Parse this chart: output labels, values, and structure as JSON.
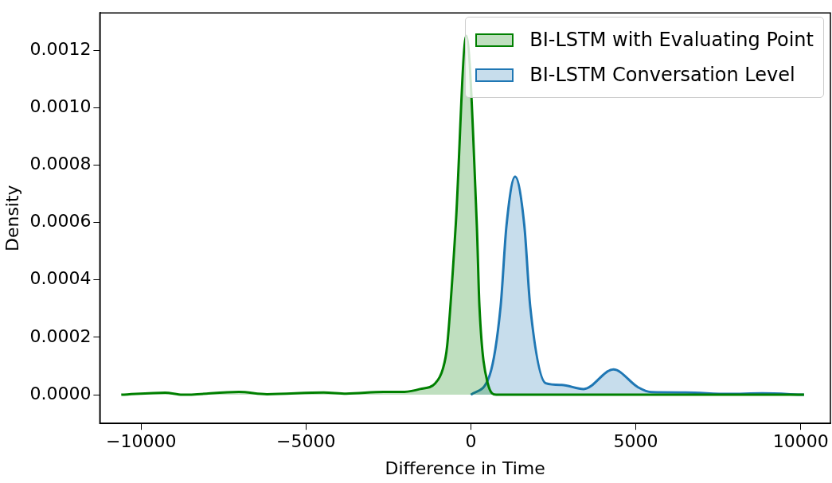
{
  "chart_data": {
    "type": "area",
    "xlabel": "Difference in Time",
    "ylabel": "Density",
    "xlim": [
      -11250,
      10900
    ],
    "xticks": [
      {
        "value": -10000,
        "label": "−10000"
      },
      {
        "value": -5000,
        "label": "−5000"
      },
      0,
      5000,
      10000
    ],
    "ylim": [
      -0.0001,
      0.00133
    ],
    "yticks": [
      {
        "value": 0,
        "label": "0.0000"
      },
      {
        "value": 0.0002,
        "label": "0.0002"
      },
      {
        "value": 0.0004,
        "label": "0.0004"
      },
      {
        "value": 0.0006,
        "label": "0.0006"
      },
      {
        "value": 0.0008,
        "label": "0.0008"
      },
      {
        "value": 0.001,
        "label": "0.0010"
      },
      {
        "value": 0.0012,
        "label": "0.0012"
      }
    ],
    "legend": "top right",
    "grid": false,
    "series": [
      {
        "name": "BI-LSTM with Evaluating Point",
        "color": "#008000",
        "x": [
          -10600,
          -9270,
          -8750,
          -7030,
          -6180,
          -4460,
          -3780,
          -2650,
          -2060,
          -1540,
          -1080,
          -850,
          -720,
          -460,
          -140,
          180,
          260,
          510,
          770,
          2000,
          10100
        ],
        "values": [
          0,
          7.5e-06,
          0,
          1e-05,
          2e-06,
          8e-06,
          4e-06,
          1e-05,
          1e-05,
          2e-05,
          4e-05,
          9e-05,
          0.00017,
          0.00059,
          0.00125,
          0.00059,
          0.000306,
          4e-05,
          0,
          0,
          0
        ]
      },
      {
        "name": "BI-LSTM Conversation Level",
        "color": "#1f77b4",
        "x": [
          0,
          570,
          900,
          1080,
          1340,
          1620,
          1800,
          2270,
          2750,
          3420,
          4320,
          5070,
          5480,
          6510,
          7800,
          8830,
          10100
        ],
        "values": [
          0,
          6.8e-05,
          0.000306,
          0.00059,
          0.00076,
          0.00059,
          0.000306,
          4e-05,
          3.4e-05,
          2e-05,
          8.8e-05,
          2.6e-05,
          9e-06,
          8e-06,
          3e-06,
          5e-06,
          0
        ]
      }
    ]
  }
}
